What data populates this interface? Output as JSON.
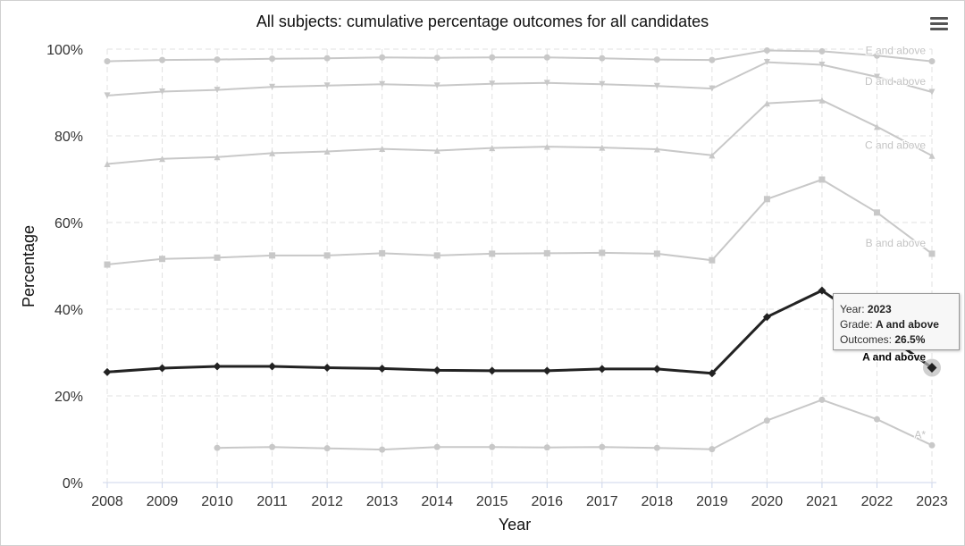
{
  "chart_data": {
    "type": "line",
    "title": "All subjects: cumulative percentage outcomes for all candidates",
    "xlabel": "Year",
    "ylabel": "Percentage",
    "ylim": [
      0,
      100
    ],
    "yticks": [
      "0%",
      "20%",
      "40%",
      "60%",
      "80%",
      "100%"
    ],
    "categories": [
      "2008",
      "2009",
      "2010",
      "2011",
      "2012",
      "2013",
      "2014",
      "2015",
      "2016",
      "2017",
      "2018",
      "2019",
      "2020",
      "2021",
      "2022",
      "2023"
    ],
    "grid": true,
    "series": [
      {
        "name": "E and above",
        "marker": "circle",
        "highlight": false,
        "values": [
          97.2,
          97.5,
          97.6,
          97.8,
          97.9,
          98.1,
          98.0,
          98.1,
          98.1,
          97.9,
          97.6,
          97.5,
          99.7,
          99.5,
          98.5,
          97.2
        ]
      },
      {
        "name": "D and above",
        "marker": "triangle-down",
        "highlight": false,
        "values": [
          89.3,
          90.2,
          90.6,
          91.3,
          91.6,
          91.9,
          91.6,
          92.0,
          92.2,
          91.9,
          91.5,
          90.9,
          97.0,
          96.4,
          93.6,
          90.1
        ]
      },
      {
        "name": "C and above",
        "marker": "triangle",
        "highlight": false,
        "values": [
          73.5,
          74.7,
          75.1,
          76.0,
          76.4,
          77.0,
          76.6,
          77.2,
          77.5,
          77.3,
          76.9,
          75.5,
          87.5,
          88.2,
          82.1,
          75.4
        ]
      },
      {
        "name": "B and above",
        "marker": "square",
        "highlight": false,
        "values": [
          50.3,
          51.6,
          51.9,
          52.4,
          52.4,
          52.9,
          52.4,
          52.8,
          52.9,
          53.0,
          52.8,
          51.3,
          65.4,
          69.9,
          62.3,
          52.8
        ]
      },
      {
        "name": "A and above",
        "marker": "diamond",
        "highlight": true,
        "values": [
          25.5,
          26.4,
          26.8,
          26.8,
          26.5,
          26.3,
          25.9,
          25.8,
          25.8,
          26.2,
          26.2,
          25.2,
          38.2,
          44.3,
          35.5,
          26.5
        ]
      },
      {
        "name": "A*",
        "marker": "circle",
        "highlight": false,
        "values": [
          null,
          null,
          8.0,
          8.2,
          7.9,
          7.6,
          8.2,
          8.2,
          8.1,
          8.2,
          8.0,
          7.7,
          14.3,
          19.1,
          14.6,
          8.6
        ]
      }
    ],
    "colors": {
      "faded": "#c8c8c8",
      "highlight": "#222222",
      "grid": "#e2e2e2",
      "axis": "#ccd6eb",
      "text": "#333333"
    }
  },
  "tooltip": {
    "year_label": "Year: ",
    "year": "2023",
    "grade_label": "Grade: ",
    "grade": "A and above",
    "outcome_label": "Outcomes: ",
    "outcome": "26.5%"
  },
  "menu": {
    "icon": "hamburger-menu-icon"
  }
}
